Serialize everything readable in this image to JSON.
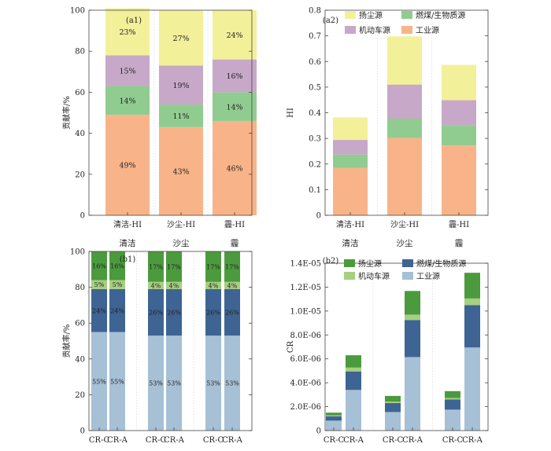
{
  "figure": {
    "colors": {
      "industry_a": "#f8b488",
      "fuel_a": "#90cc90",
      "vehicle_a": "#c7a8c8",
      "dust_a": "#f3f09a",
      "industry_b": "#a6c0d5",
      "fuel_b": "#3e6493",
      "vehicle_b": "#a7cf80",
      "dust_b": "#4c9a3e",
      "axis": "#444444",
      "grid": "#d0d0d0"
    }
  },
  "chart_data": [
    {
      "id": "a1",
      "type": "bar",
      "stacked": true,
      "panel_label": "(a1)",
      "categories": [
        "清洁-HI",
        "沙尘-HI",
        "霾-HI"
      ],
      "group_labels": [
        "清洁",
        "沙尘",
        "霾"
      ],
      "ylabel": "贡献率/%",
      "ylim": [
        0,
        100
      ],
      "yticks": [
        "0",
        "20",
        "40",
        "60",
        "80",
        "100"
      ],
      "grid": true,
      "series": [
        {
          "key": "industry",
          "values": [
            49,
            43,
            46
          ],
          "labels": [
            "49%",
            "43%",
            "46%"
          ],
          "color": "#f8b488"
        },
        {
          "key": "fuel",
          "values": [
            14,
            11,
            14
          ],
          "labels": [
            "14%",
            "11%",
            "14%"
          ],
          "color": "#90cc90"
        },
        {
          "key": "vehicle",
          "values": [
            15,
            19,
            16
          ],
          "labels": [
            "15%",
            "19%",
            "16%"
          ],
          "color": "#c7a8c8"
        },
        {
          "key": "dust",
          "values": [
            23,
            27,
            24
          ],
          "labels": [
            "23%",
            "27%",
            "24%"
          ],
          "color": "#f3f09a"
        }
      ]
    },
    {
      "id": "a2",
      "type": "bar",
      "stacked": true,
      "panel_label": "(a2)",
      "categories": [
        "清洁-HI",
        "沙尘-HI",
        "霾-HI"
      ],
      "ylabel": "HI",
      "ylim": [
        0,
        0.8
      ],
      "yticks": [
        "0",
        "0.1",
        "0.2",
        "0.3",
        "0.4",
        "0.5",
        "0.6",
        "0.7",
        "0.8"
      ],
      "grid": true,
      "legend": {
        "placement": "top",
        "entries": [
          {
            "name": "扬尘源",
            "color": "#f3f09a"
          },
          {
            "name": "燃煤/生物质源",
            "color": "#90cc90"
          },
          {
            "name": "机动车源",
            "color": "#c7a8c8"
          },
          {
            "name": "工业源",
            "color": "#f8b488"
          }
        ]
      },
      "series": [
        {
          "name": "工业源",
          "values": [
            0.185,
            0.302,
            0.272
          ],
          "color": "#f8b488"
        },
        {
          "name": "燃煤/生物质源",
          "values": [
            0.052,
            0.075,
            0.08
          ],
          "color": "#90cc90"
        },
        {
          "name": "机动车源",
          "values": [
            0.057,
            0.133,
            0.097
          ],
          "color": "#c7a8c8"
        },
        {
          "name": "扬尘源",
          "values": [
            0.088,
            0.188,
            0.138
          ],
          "color": "#f3f09a"
        }
      ]
    },
    {
      "id": "b1",
      "type": "bar",
      "stacked": true,
      "panel_label": "(b1)",
      "categories": [
        "CR-C",
        "CR-A",
        "CR-C",
        "CR-A",
        "CR-C",
        "CR-A"
      ],
      "ylabel": "贡献率/%",
      "ylim": [
        0,
        100
      ],
      "yticks": [
        "0",
        "20",
        "40",
        "60",
        "80",
        "100"
      ],
      "grid": true,
      "series": [
        {
          "key": "industry",
          "values": [
            55,
            55,
            53,
            53,
            53,
            53
          ],
          "labels": [
            "55%",
            "55%",
            "53%",
            "53%",
            "53%",
            "53%"
          ],
          "color": "#a6c0d5"
        },
        {
          "key": "fuel",
          "values": [
            24,
            24,
            26,
            26,
            26,
            26
          ],
          "labels": [
            "24%",
            "24%",
            "26%",
            "26%",
            "26%",
            "26%"
          ],
          "color": "#3e6493"
        },
        {
          "key": "vehicle",
          "values": [
            5,
            5,
            4,
            4,
            4,
            4
          ],
          "labels": [
            "5%",
            "5%",
            "4%",
            "4%",
            "4%",
            "4%"
          ],
          "color": "#a7cf80"
        },
        {
          "key": "dust",
          "values": [
            16,
            16,
            17,
            17,
            17,
            17
          ],
          "labels": [
            "16%",
            "16%",
            "17%",
            "17%",
            "17%",
            "17%"
          ],
          "color": "#4c9a3e"
        }
      ]
    },
    {
      "id": "b2",
      "type": "bar",
      "stacked": true,
      "panel_label": "(b2)",
      "categories": [
        "CR-C",
        "CR-A",
        "CR-C",
        "CR-A",
        "CR-C",
        "CR-A"
      ],
      "ylabel": "CR",
      "ylim": [
        0,
        1.4e-05
      ],
      "yticks": [
        "0",
        "2.0E-06",
        "4.0E-06",
        "6.0E-06",
        "8.0E-06",
        "1.0E-05",
        "1.2E-05",
        "1.4E-05"
      ],
      "grid": true,
      "legend": {
        "placement": "top",
        "entries": [
          {
            "name": "扬尘源",
            "color": "#4c9a3e"
          },
          {
            "name": "燃煤/生物质源",
            "color": "#3e6493"
          },
          {
            "name": "机动车源",
            "color": "#a7cf80"
          },
          {
            "name": "工业源",
            "color": "#a6c0d5"
          }
        ]
      },
      "series": [
        {
          "name": "工业源",
          "values": [
            8.3e-07,
            3.4e-06,
            1.55e-06,
            6.15e-06,
            1.75e-06,
            6.95e-06
          ],
          "color": "#a6c0d5"
        },
        {
          "name": "燃煤/生物质源",
          "values": [
            3.7e-07,
            1.55e-06,
            7.5e-07,
            3.1e-06,
            8.5e-07,
            3.55e-06
          ],
          "color": "#3e6493"
        },
        {
          "name": "机动车源",
          "values": [
            8e-08,
            3.2e-07,
            1.2e-07,
            4.5e-07,
            1.3e-07,
            5.5e-07
          ],
          "color": "#a7cf80"
        },
        {
          "name": "扬尘源",
          "values": [
            2.2e-07,
            1.03e-06,
            4.8e-07,
            1.98e-06,
            5.7e-07,
            2.15e-06
          ],
          "color": "#4c9a3e"
        }
      ]
    }
  ]
}
